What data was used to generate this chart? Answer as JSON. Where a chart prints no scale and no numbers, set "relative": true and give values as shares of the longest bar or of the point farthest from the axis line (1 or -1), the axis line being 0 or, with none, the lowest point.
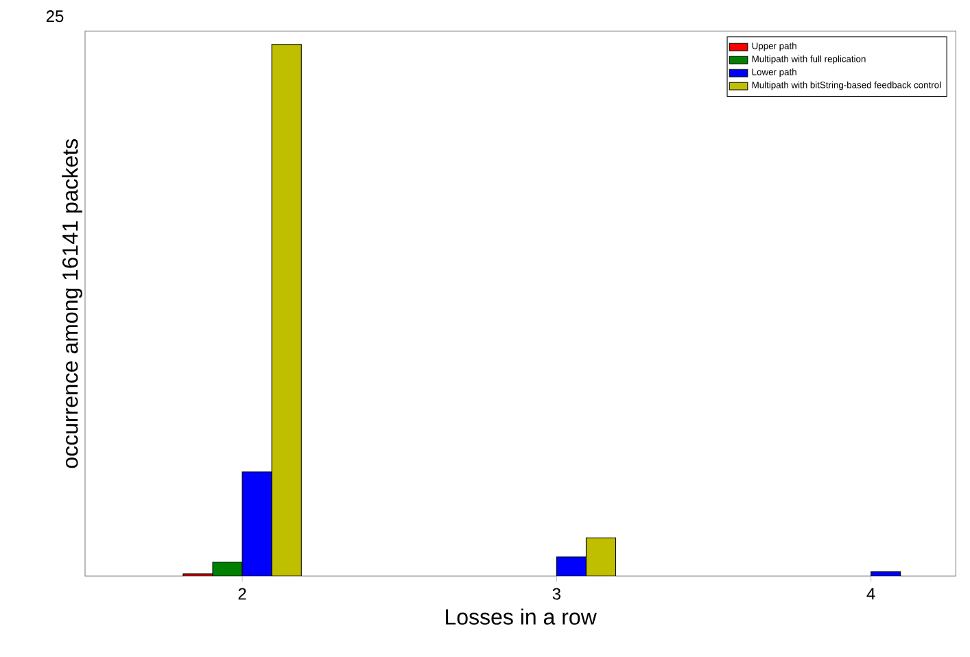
{
  "chart_data": {
    "type": "bar",
    "xlabel": "Losses in a row",
    "ylabel": "occurrence among 16141 packets",
    "categories": [
      "2",
      "3",
      "4"
    ],
    "relative": true,
    "legend": "top right",
    "annotations": [
      "25"
    ],
    "series": [
      {
        "name": "Upper path",
        "color": "#ff0000",
        "values": [
          0.004,
          null,
          null
        ]
      },
      {
        "name": "Multipath with full replication",
        "color": "#008000",
        "values": [
          0.026,
          null,
          null
        ]
      },
      {
        "name": "Lower path",
        "color": "#0000ff",
        "values": [
          0.196,
          0.036,
          0.008
        ]
      },
      {
        "name": "Multipath with bitString-based feedback control",
        "color": "#bfbf00",
        "values": [
          1,
          0.072,
          null
        ]
      }
    ]
  }
}
